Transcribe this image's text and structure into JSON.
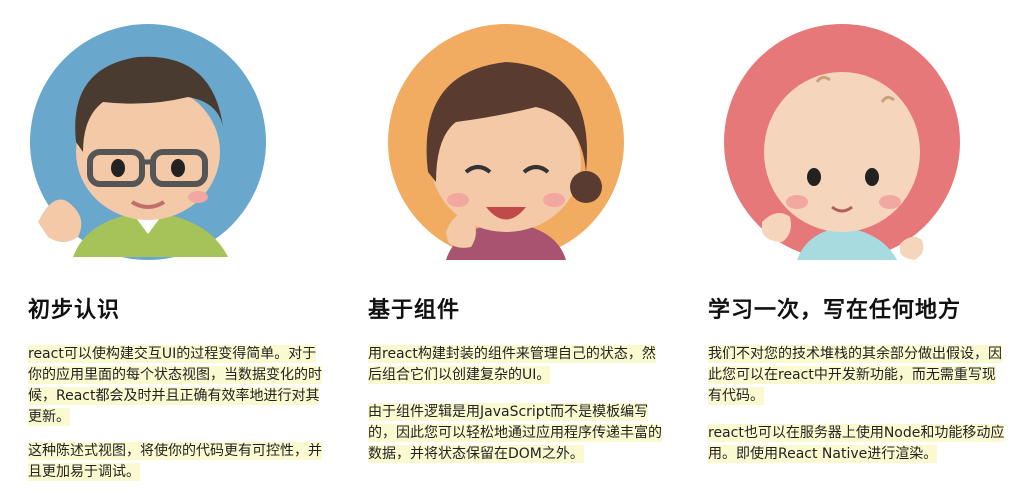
{
  "features": [
    {
      "title": "初步认识",
      "avatar_icon": "grandpa-avatar-icon",
      "circle_color": "#6aa7cc",
      "paragraphs": [
        "react可以使构建交互UI的过程变得简单。对于你的应用里面的每个状态视图，当数据变化的时候，React都会及时并且正确有效率地进行对其更新。",
        "这种陈述式视图，将使你的代码更有可控性，并且更加易于调试。"
      ]
    },
    {
      "title": "基于组件",
      "avatar_icon": "grandma-avatar-icon",
      "circle_color": "#f2ac62",
      "paragraphs": [
        "用react构建封装的组件来管理自己的状态，然后组合它们以创建复杂的UI。",
        "由于组件逻辑是用JavaScript而不是模板编写的，因此您可以轻松地通过应用程序传递丰富的数据，并将状态保留在DOM之外。"
      ]
    },
    {
      "title": "学习一次，写在任何地方",
      "avatar_icon": "baby-avatar-icon",
      "circle_color": "#e6787a",
      "paragraphs": [
        "我们不对您的技术堆栈的其余部分做出假设，因此您可以在react中开发新功能，而无需重写现有代码。",
        "react也可以在服务器上使用Node和功能移动应用。即使用React Native进行渲染。"
      ]
    }
  ]
}
